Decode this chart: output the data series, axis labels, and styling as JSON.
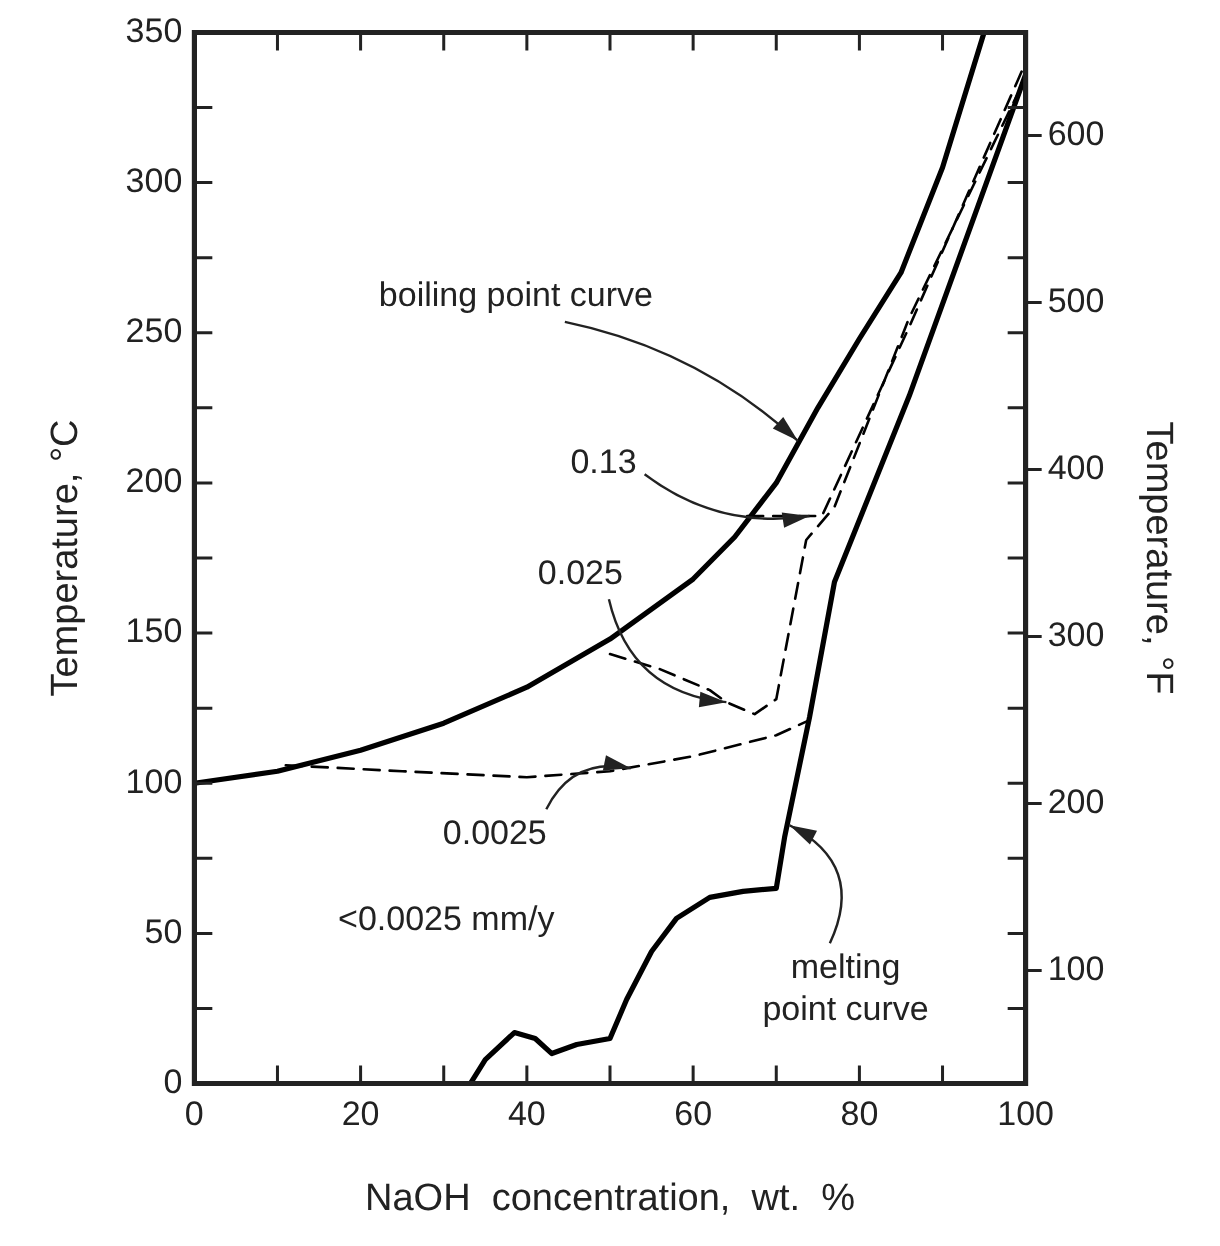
{
  "chart_data": {
    "type": "line",
    "xlabel": "NaOH  concentration,  wt.  %",
    "ylabel": "Temperature, °C",
    "y2label": "Temperature, °F",
    "xlim": [
      0,
      100
    ],
    "ylim": [
      0,
      350
    ],
    "y2lim": [
      32,
      662
    ],
    "xticks": [
      0,
      {
        "value": 10,
        "label": null
      },
      20,
      {
        "value": 30,
        "label": null
      },
      40,
      {
        "value": 50,
        "label": null
      },
      60,
      {
        "value": 70,
        "label": null
      },
      80,
      {
        "value": 90,
        "label": null
      },
      100
    ],
    "yticks": [
      0,
      {
        "value": 25,
        "label": null
      },
      50,
      {
        "value": 75,
        "label": null
      },
      100,
      {
        "value": 125,
        "label": null
      },
      150,
      {
        "value": 175,
        "label": null
      },
      200,
      {
        "value": 225,
        "label": null
      },
      250,
      {
        "value": 275,
        "label": null
      },
      300,
      {
        "value": 325,
        "label": null
      },
      350
    ],
    "y2ticks": [
      100,
      200,
      300,
      400,
      500,
      600
    ],
    "grid": false,
    "legend": false,
    "marker": "none",
    "series": [
      {
        "color": "#000000",
        "line_style": "solid",
        "x": [
          0,
          10,
          20,
          30,
          40,
          50,
          60,
          65,
          70,
          75,
          80,
          85,
          90,
          95
        ],
        "values": [
          100,
          104,
          111,
          120,
          132,
          148,
          168,
          182,
          200,
          225,
          248,
          270,
          305,
          350
        ]
      },
      {
        "color": "#000000",
        "line_style": "solid",
        "x": [
          33.2,
          35,
          38.5,
          41,
          43,
          46,
          50,
          52,
          55,
          58,
          62,
          66,
          70,
          71,
          74,
          77,
          86,
          100
        ],
        "values": [
          0,
          8,
          17,
          15,
          10,
          13,
          15,
          28,
          44,
          55,
          62,
          64,
          65,
          82,
          122,
          167,
          229,
          336
        ]
      },
      {
        "color": "#000000",
        "line_style": "dashed",
        "x": [
          11,
          25,
          40,
          50,
          60,
          70,
          74
        ],
        "values": [
          106,
          104,
          102,
          104,
          109,
          116,
          121
        ]
      },
      {
        "color": "#000000",
        "line_style": "dashed",
        "x": [
          50,
          56,
          62,
          64,
          67.4,
          70,
          73.6,
          77,
          86,
          100
        ],
        "values": [
          143,
          138,
          131,
          127,
          123,
          128,
          181,
          192,
          255,
          335
        ]
      },
      {
        "color": "#000000",
        "line_style": "dashed",
        "x": [
          66.5,
          75.5,
          86,
          100
        ],
        "values": [
          189,
          189,
          252,
          340
        ]
      }
    ],
    "annotations": [
      {
        "text": "boiling point curve",
        "x": 72.6,
        "y": 214
      },
      {
        "text": "0.13",
        "x": 74,
        "y": 189
      },
      {
        "text": "0.025",
        "x": 64,
        "y": 127
      },
      {
        "text": "0.0025",
        "x": 52.5,
        "y": 105
      },
      "<0.0025 mm/y",
      {
        "text": "melting point curve",
        "x": 71.6,
        "y": 86
      }
    ]
  }
}
